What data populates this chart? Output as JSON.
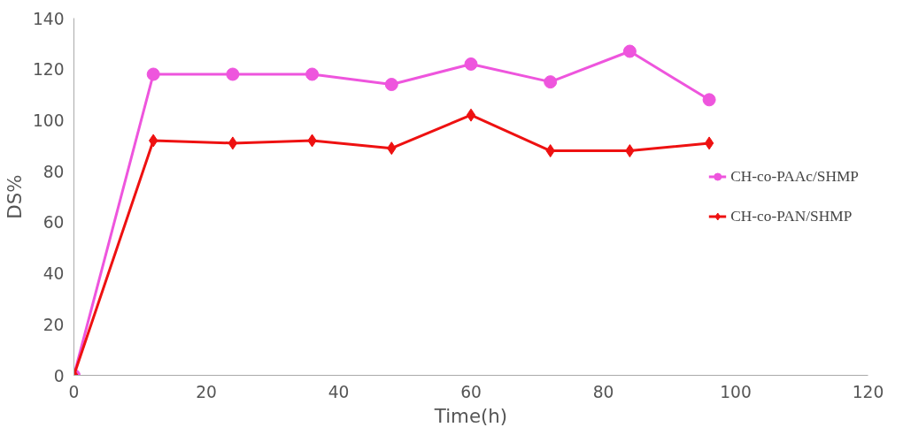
{
  "chart_data": {
    "type": "line",
    "xlabel": "Time(h)",
    "ylabel": "DS%",
    "x": [
      0,
      12,
      24,
      36,
      48,
      60,
      72,
      84,
      96
    ],
    "series": [
      {
        "name": "CH-co-PAAc/SHMP",
        "color": "#ee55dd",
        "marker": "circle",
        "values": [
          0,
          118,
          118,
          118,
          114,
          122,
          115,
          127,
          108
        ]
      },
      {
        "name": "CH-co-PAN/SHMP",
        "color": "#ee1111",
        "marker": "diamond",
        "values": [
          0,
          92,
          91,
          92,
          89,
          102,
          88,
          88,
          91
        ]
      }
    ],
    "xlim": [
      0,
      120
    ],
    "xticks": [
      0,
      20,
      40,
      60,
      80,
      100,
      120
    ],
    "ylim": [
      0,
      140
    ],
    "yticks": [
      0,
      20,
      40,
      60,
      80,
      100,
      120,
      140
    ],
    "grid": false,
    "legend": "right"
  }
}
